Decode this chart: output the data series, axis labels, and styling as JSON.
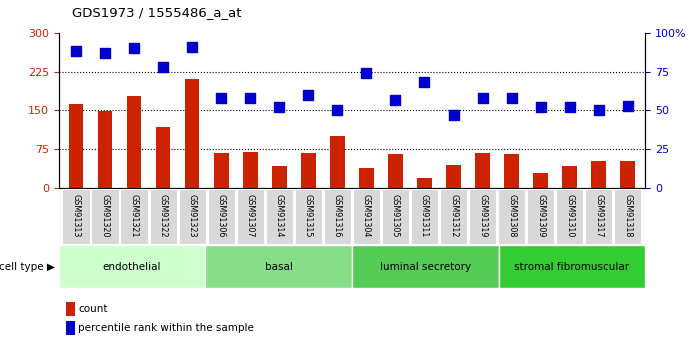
{
  "title": "GDS1973 / 1555486_a_at",
  "samples": [
    "GSM91313",
    "GSM91320",
    "GSM91321",
    "GSM91322",
    "GSM91323",
    "GSM91306",
    "GSM91307",
    "GSM91314",
    "GSM91315",
    "GSM91316",
    "GSM91304",
    "GSM91305",
    "GSM91311",
    "GSM91312",
    "GSM91319",
    "GSM91308",
    "GSM91309",
    "GSM91310",
    "GSM91317",
    "GSM91318"
  ],
  "counts": [
    163,
    148,
    178,
    118,
    210,
    68,
    70,
    42,
    68,
    100,
    38,
    65,
    20,
    45,
    68,
    65,
    30,
    42,
    52,
    52
  ],
  "percentile": [
    88,
    87,
    90,
    78,
    91,
    58,
    58,
    52,
    60,
    50,
    74,
    57,
    68,
    47,
    58,
    58,
    52,
    52,
    50,
    53
  ],
  "cell_types": [
    {
      "label": "endothelial",
      "start": 0,
      "end": 5,
      "color": "#ccffcc"
    },
    {
      "label": "basal",
      "start": 5,
      "end": 10,
      "color": "#88dd88"
    },
    {
      "label": "luminal secretory",
      "start": 10,
      "end": 15,
      "color": "#55cc55"
    },
    {
      "label": "stromal fibromuscular",
      "start": 15,
      "end": 20,
      "color": "#33cc33"
    }
  ],
  "bar_color": "#cc2200",
  "dot_color": "#0000cc",
  "ylim_left": [
    0,
    300
  ],
  "ylim_right": [
    0,
    100
  ],
  "yticks_left": [
    0,
    75,
    150,
    225,
    300
  ],
  "yticks_right": [
    0,
    25,
    50,
    75,
    100
  ],
  "yticklabels_right": [
    "0",
    "25",
    "50",
    "75",
    "100%"
  ],
  "hlines": [
    75,
    150,
    225
  ],
  "bar_width": 0.5,
  "dot_size": 45,
  "dot_marker": "s",
  "legend_items": [
    {
      "color": "#cc2200",
      "label": "count"
    },
    {
      "color": "#0000cc",
      "label": "percentile rank within the sample"
    }
  ],
  "cell_type_label": "cell type",
  "sample_box_color": "#d8d8d8",
  "tick_label_color_left": "#cc2200",
  "tick_label_color_right": "#0000cc",
  "background_color": "#ffffff"
}
